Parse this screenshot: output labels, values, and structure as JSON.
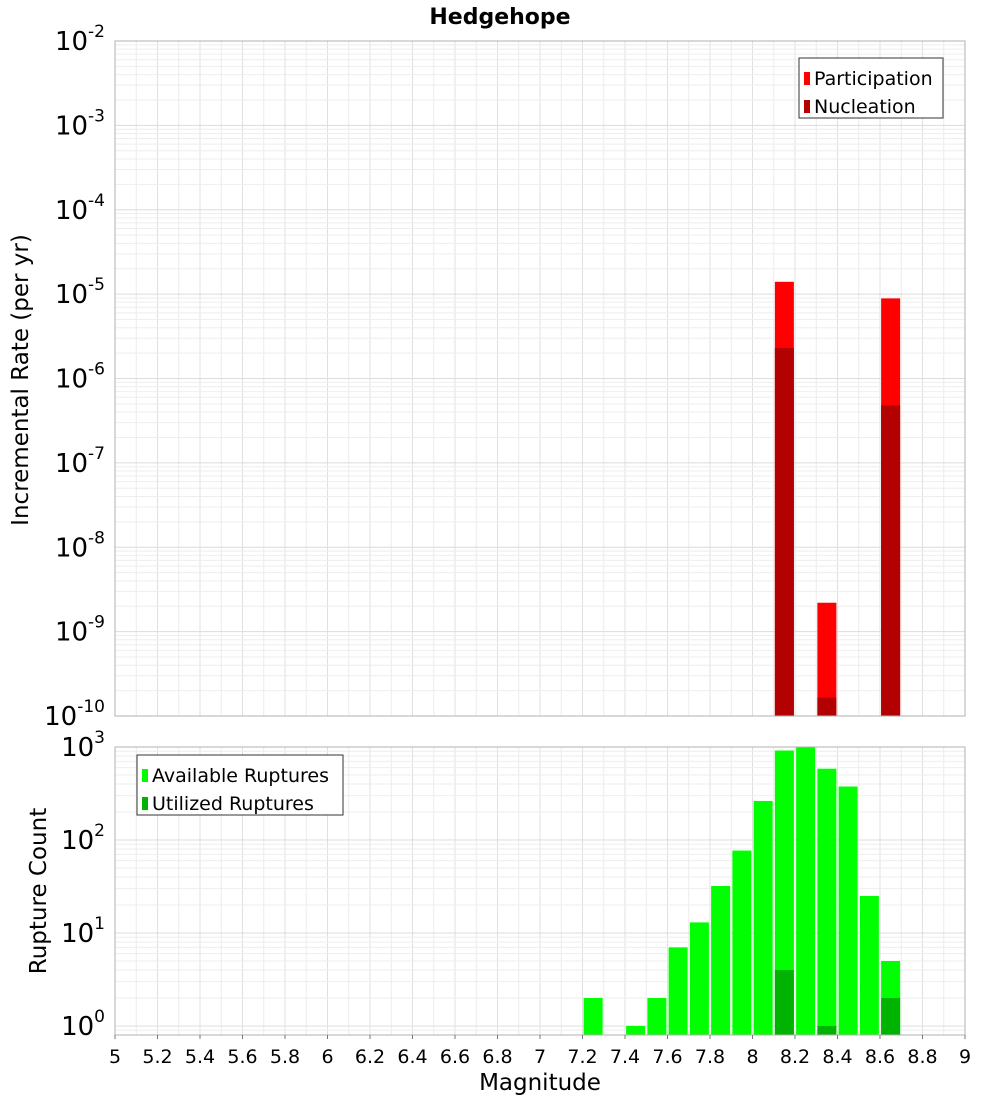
{
  "chart_data": [
    {
      "type": "bar",
      "title": "Hedgehope",
      "xlabel": "",
      "ylabel": "Incremental Rate (per yr)",
      "yscale": "log",
      "ylim": [
        1e-10,
        0.01
      ],
      "xlim": [
        5,
        9
      ],
      "y_tick_labels": [
        {
          "value": 1e-10,
          "base": "10",
          "exp": "-10"
        },
        {
          "value": 1e-09,
          "base": "10",
          "exp": "-9"
        },
        {
          "value": 1e-08,
          "base": "10",
          "exp": "-8"
        },
        {
          "value": 1e-07,
          "base": "10",
          "exp": "-7"
        },
        {
          "value": 1e-06,
          "base": "10",
          "exp": "-6"
        },
        {
          "value": 1e-05,
          "base": "10",
          "exp": "-5"
        },
        {
          "value": 0.0001,
          "base": "10",
          "exp": "-4"
        },
        {
          "value": 0.001,
          "base": "10",
          "exp": "-3"
        },
        {
          "value": 0.01,
          "base": "10",
          "exp": "-2"
        }
      ],
      "grid": true,
      "legend": {
        "position": "top-right",
        "entries": [
          "Participation",
          "Nucleation"
        ]
      },
      "series": [
        {
          "name": "Participation",
          "color": "#ff0000",
          "points": [
            {
              "x": 8.15,
              "y": 1.4e-05
            },
            {
              "x": 8.35,
              "y": 2.2e-09
            },
            {
              "x": 8.65,
              "y": 8.9e-06
            }
          ]
        },
        {
          "name": "Nucleation",
          "color": "#b30000",
          "points": [
            {
              "x": 8.15,
              "y": 2.3e-06
            },
            {
              "x": 8.35,
              "y": 1.65e-10
            },
            {
              "x": 8.65,
              "y": 4.8e-07
            }
          ]
        }
      ]
    },
    {
      "type": "bar",
      "title": "",
      "xlabel": "Magnitude",
      "ylabel": "Rupture Count",
      "yscale": "log",
      "ylim": [
        0.8,
        1000
      ],
      "xlim": [
        5,
        9
      ],
      "x_tick_labels": [
        "5",
        "5.2",
        "5.4",
        "5.6",
        "5.8",
        "6",
        "6.2",
        "6.4",
        "6.6",
        "6.8",
        "7",
        "7.2",
        "7.4",
        "7.6",
        "7.8",
        "8",
        "8.2",
        "8.4",
        "8.6",
        "8.8",
        "9"
      ],
      "y_tick_labels": [
        {
          "value": 1,
          "base": "10",
          "exp": "0"
        },
        {
          "value": 10,
          "base": "10",
          "exp": "1"
        },
        {
          "value": 100,
          "base": "10",
          "exp": "2"
        },
        {
          "value": 1000,
          "base": "10",
          "exp": "3"
        }
      ],
      "grid": true,
      "legend": {
        "position": "top-left",
        "entries": [
          "Available Ruptures",
          "Utilized Ruptures"
        ]
      },
      "series": [
        {
          "name": "Available Ruptures",
          "color": "#00ff00",
          "points": [
            {
              "x": 7.25,
              "y": 2
            },
            {
              "x": 7.45,
              "y": 1
            },
            {
              "x": 7.55,
              "y": 2
            },
            {
              "x": 7.65,
              "y": 7
            },
            {
              "x": 7.75,
              "y": 13
            },
            {
              "x": 7.85,
              "y": 32
            },
            {
              "x": 7.95,
              "y": 77
            },
            {
              "x": 8.05,
              "y": 263
            },
            {
              "x": 8.15,
              "y": 917
            },
            {
              "x": 8.25,
              "y": 1000
            },
            {
              "x": 8.35,
              "y": 584
            },
            {
              "x": 8.45,
              "y": 376
            },
            {
              "x": 8.55,
              "y": 25
            },
            {
              "x": 8.65,
              "y": 5
            }
          ]
        },
        {
          "name": "Utilized Ruptures",
          "color": "#00b300",
          "points": [
            {
              "x": 8.15,
              "y": 4
            },
            {
              "x": 8.35,
              "y": 1
            },
            {
              "x": 8.65,
              "y": 2
            }
          ]
        }
      ]
    }
  ]
}
